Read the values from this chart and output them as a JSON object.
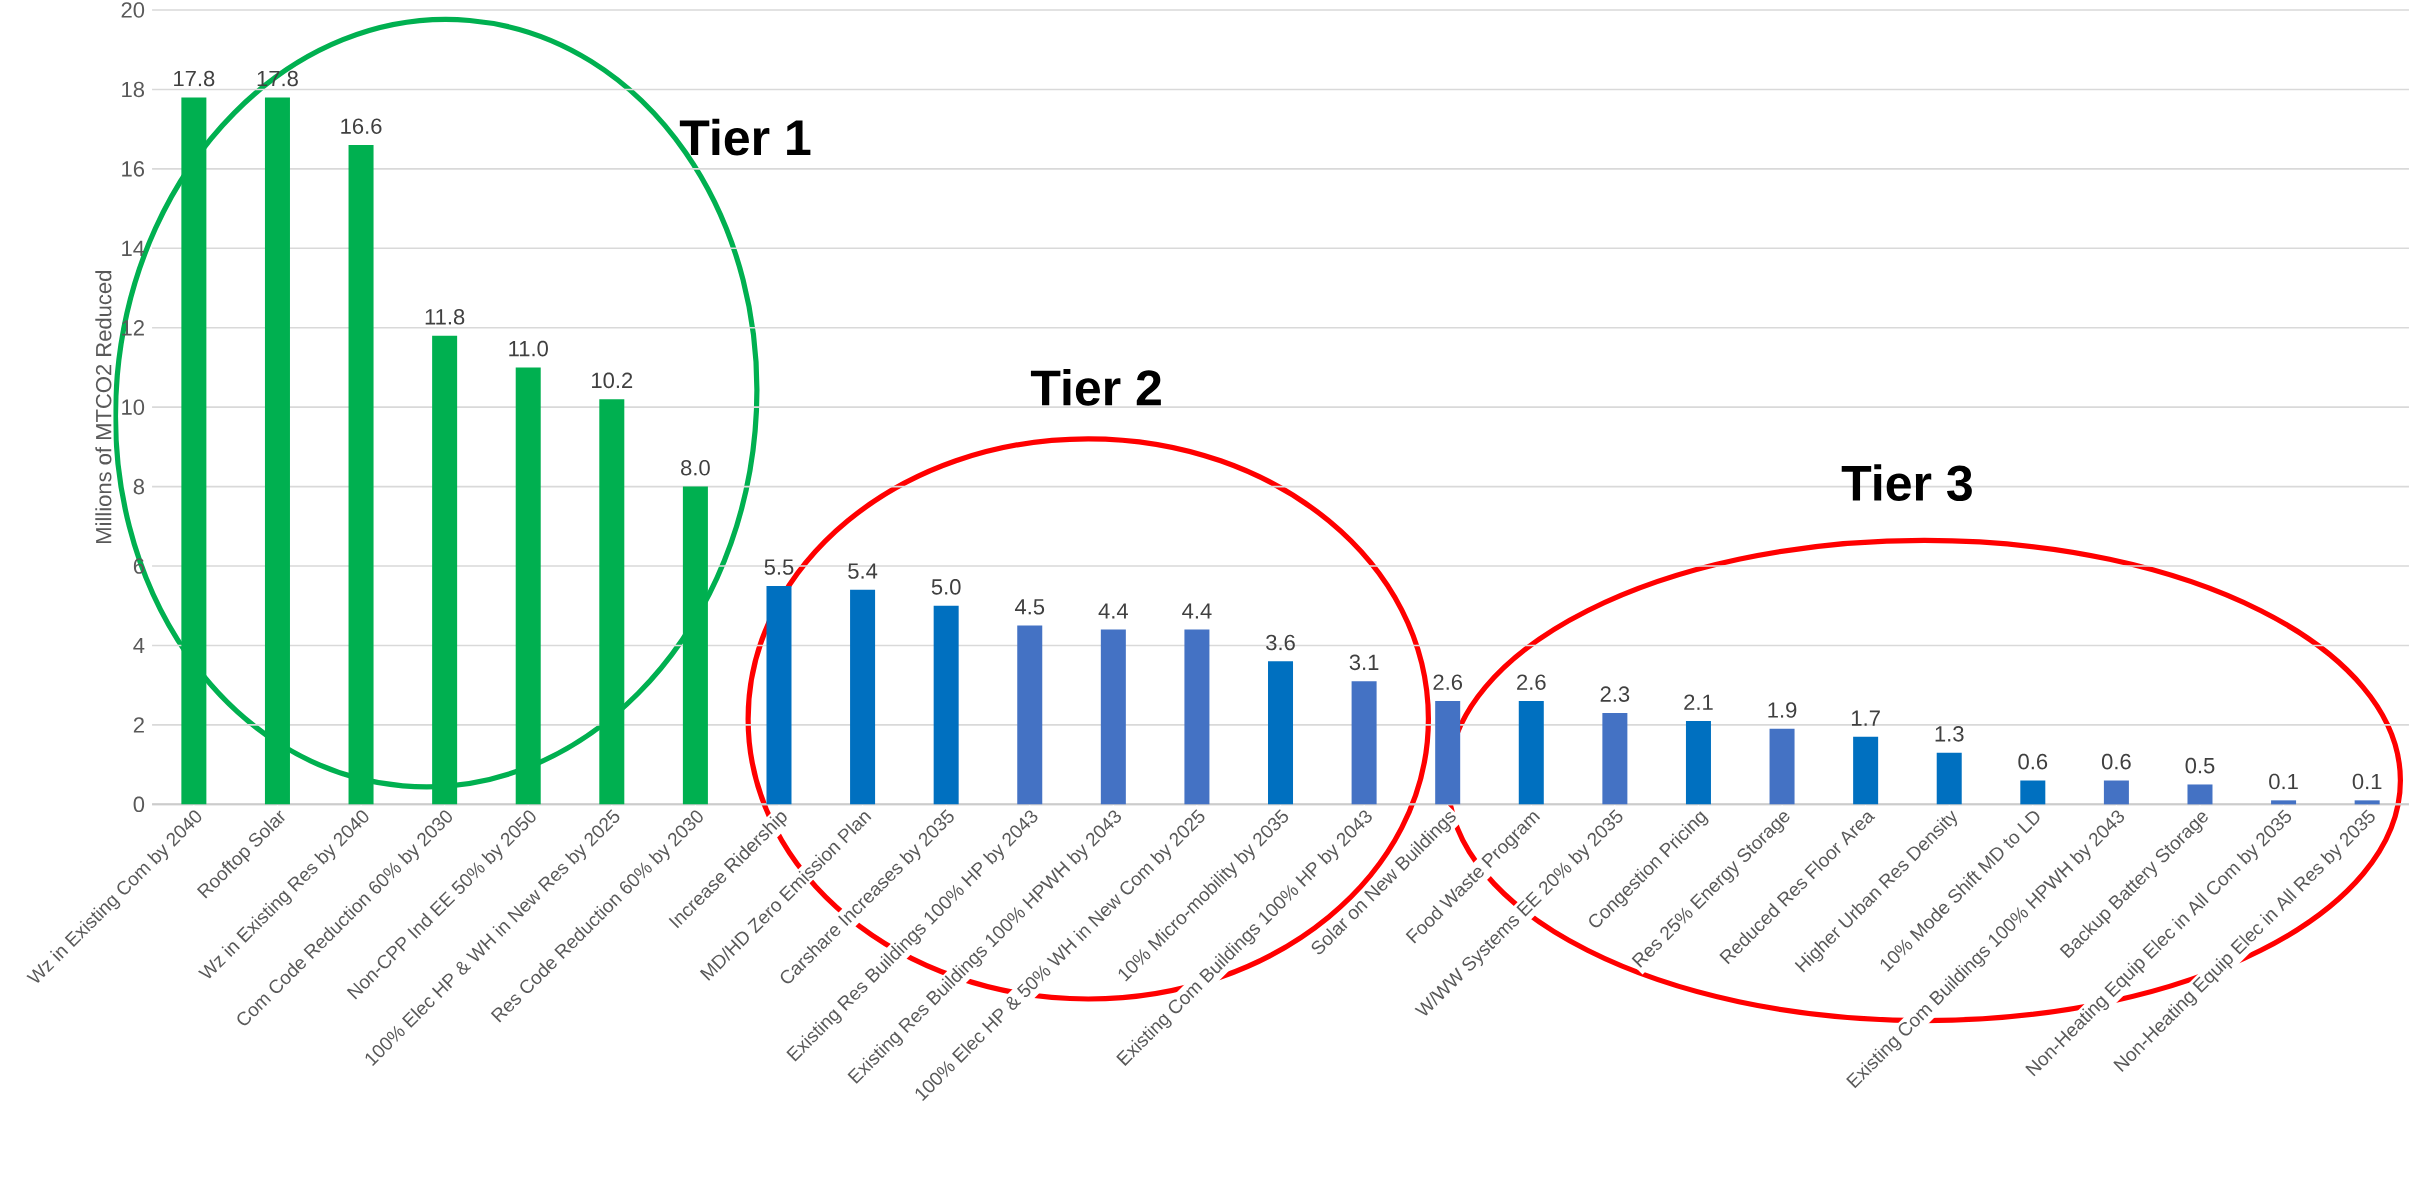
{
  "chart_data": {
    "type": "bar",
    "ylabel": "Millions of MTCO2 Reduced",
    "categories": [
      "Wz in Existing Com by 2040",
      "Rooftop Solar",
      "Wz in Existing Res by 2040",
      "Com Code Reduction 60% by 2030",
      "Non-CPP Ind EE 50% by 2050",
      "100% Elec HP & WH in New Res by 2025",
      "Res Code Reduction 60% by 2030",
      "Increase Ridership",
      "MD/HD Zero Emission Plan",
      "Carshare Increases by 2035",
      "Existing Res Buildings 100% HP by 2043",
      "Existing Res Buildings 100% HPWH by 2043",
      "100% Elec HP & 50% WH in New Com by 2025",
      "10% Micro-mobility by 2035",
      "Existing Com Buildings 100% HP by 2043",
      "Solar on New Buildings",
      "Food Waste Program",
      "W/WW Systems EE 20% by 2035",
      "Congestion Pricing",
      "Res 25% Energy Storage",
      "Reduced Res Floor Area",
      "Higher Urban Res Density",
      "10% Mode Shift MD to LD",
      "Existing Com Buildings 100% HPWH by 2043",
      "Backup Battery Storage",
      "Non-Heating Equip Elec in All Com by 2035",
      "Non-Heating Equip Elec in All Res by 2035"
    ],
    "values": [
      17.8,
      17.8,
      16.6,
      11.8,
      11.0,
      10.2,
      8.0,
      5.5,
      5.4,
      5.0,
      4.5,
      4.4,
      4.4,
      3.6,
      3.1,
      2.6,
      2.6,
      2.3,
      2.1,
      1.9,
      1.7,
      1.3,
      0.6,
      0.6,
      0.5,
      0.1,
      0.1
    ],
    "colors": [
      "#00b050",
      "#00b050",
      "#00b050",
      "#00b050",
      "#00b050",
      "#00b050",
      "#00b050",
      "#0070c0",
      "#0070c0",
      "#0070c0",
      "#4472c4",
      "#4472c4",
      "#4472c4",
      "#0070c0",
      "#4472c4",
      "#4472c4",
      "#0070c0",
      "#4472c4",
      "#0070c0",
      "#4472c4",
      "#0070c0",
      "#0070c0",
      "#0070c0",
      "#4472c4",
      "#4472c4",
      "#4472c4",
      "#4472c4"
    ],
    "value_labels": [
      "17.8",
      "17.8",
      "16.6",
      "11.8",
      "11.0",
      "10.2",
      "8.0",
      "5.5",
      "5.4",
      "5.0",
      "4.5",
      "4.4",
      "4.4",
      "3.6",
      "3.1",
      "2.6",
      "2.6",
      "2.3",
      "2.1",
      "1.9",
      "1.7",
      "1.3",
      "0.6",
      "0.6",
      "0.5",
      "0.1",
      "0.1"
    ],
    "ylim": [
      0,
      20
    ],
    "yticks": [
      0,
      2,
      4,
      6,
      8,
      10,
      12,
      14,
      16,
      18,
      20
    ],
    "grid": "y",
    "annotations": [
      "Tier 1",
      "Tier 2",
      "Tier 3"
    ]
  }
}
